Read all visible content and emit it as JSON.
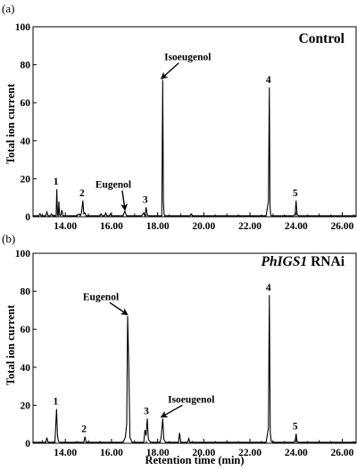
{
  "chart_data": [
    {
      "type": "line",
      "panel_tag": "(a)",
      "title": "Control",
      "ylabel": "Total ion current",
      "xlabel": "",
      "xlim": [
        12.6,
        26.6
      ],
      "ylim": [
        0,
        100
      ],
      "x_ticks": [
        14.0,
        16.0,
        18.0,
        20.0,
        22.0,
        24.0,
        26.0
      ],
      "x_tick_labels": [
        "14.00",
        "16.00",
        "18.00",
        "20.00",
        "22.00",
        "24.00",
        "26.00"
      ],
      "y_ticks": [
        0,
        20,
        40,
        60,
        80,
        100
      ],
      "y_tick_labels": [
        "0",
        "20",
        "40",
        "60",
        "80",
        "100"
      ],
      "series": [
        {
          "x": [
            12.6,
            12.85,
            12.9,
            12.95,
            13.15,
            13.2,
            13.25,
            13.35,
            13.4,
            13.45,
            13.6,
            13.63,
            13.66,
            13.69,
            13.72,
            13.75,
            13.8,
            13.85,
            13.9,
            14.5,
            14.6,
            14.65,
            14.7,
            14.76,
            14.8,
            14.85,
            14.9,
            15.5,
            15.55,
            15.6,
            15.7,
            15.75,
            15.8,
            15.9,
            15.95,
            16.0,
            16.5,
            16.58,
            16.62,
            16.66,
            16.75,
            17.3,
            17.4,
            17.45,
            17.5,
            17.55,
            17.6,
            18.1,
            18.18,
            18.22,
            18.25,
            18.28,
            18.31,
            18.35,
            18.4,
            19.4,
            19.45,
            19.5,
            22.7,
            22.8,
            22.84,
            22.87,
            22.9,
            22.93,
            23.0,
            23.9,
            23.96,
            24.0,
            24.04,
            24.1,
            26.6
          ],
          "y": [
            0.5,
            0.5,
            1.5,
            0.5,
            0.5,
            2.5,
            0.5,
            0.5,
            1.5,
            0.5,
            0.5,
            14.5,
            1.0,
            0.5,
            8.0,
            1.0,
            0.5,
            3.5,
            0.5,
            0.5,
            1.5,
            0.5,
            2.0,
            8.5,
            1.5,
            2.0,
            0.5,
            0.5,
            1.5,
            0.5,
            0.5,
            2.0,
            0.5,
            0.5,
            1.5,
            0.5,
            0.5,
            3.0,
            1.5,
            0.5,
            0.5,
            0.5,
            2.0,
            0.5,
            5.0,
            1.0,
            0.5,
            0.5,
            0.5,
            72.0,
            8.0,
            1.5,
            0.5,
            0.5,
            0.5,
            0.5,
            1.5,
            0.5,
            0.5,
            8.0,
            68.0,
            5.0,
            1.0,
            0.5,
            0.5,
            0.5,
            1.5,
            8.5,
            1.5,
            0.5,
            0.5
          ]
        }
      ],
      "annotations": [
        {
          "text": "1",
          "x": 13.63,
          "y": 14.5,
          "arrow": false
        },
        {
          "text": "2",
          "x": 14.76,
          "y": 8.5,
          "arrow": false
        },
        {
          "text": "Eugenol",
          "x": 16.62,
          "y": 3.0,
          "arrow": true
        },
        {
          "text": "3",
          "x": 17.5,
          "y": 5.0,
          "arrow": false
        },
        {
          "text": "Isoeugenol",
          "x": 18.22,
          "y": 72.0,
          "arrow": true
        },
        {
          "text": "4",
          "x": 22.84,
          "y": 68.0,
          "arrow": false
        },
        {
          "text": "5",
          "x": 24.0,
          "y": 8.5,
          "arrow": false
        }
      ]
    },
    {
      "type": "line",
      "panel_tag": "(b)",
      "title": "PhIGS1 RNAi",
      "title_italic_part": "PhIGS1",
      "title_plain_part": " RNAi",
      "ylabel": "Total ion current",
      "xlabel": "Retention time (min)",
      "xlim": [
        12.6,
        26.6
      ],
      "ylim": [
        0,
        100
      ],
      "x_ticks": [
        14.0,
        16.0,
        18.0,
        20.0,
        22.0,
        24.0,
        26.0
      ],
      "x_tick_labels": [
        "14.00",
        "16.00",
        "18.00",
        "20.00",
        "22.00",
        "24.00",
        "26.00"
      ],
      "y_ticks": [
        0,
        20,
        40,
        60,
        80,
        100
      ],
      "y_tick_labels": [
        "0",
        "20",
        "40",
        "60",
        "80",
        "100"
      ],
      "series": [
        {
          "x": [
            12.6,
            13.15,
            13.2,
            13.25,
            13.55,
            13.62,
            13.66,
            13.7,
            13.78,
            14.8,
            14.85,
            14.9,
            16.5,
            16.6,
            16.66,
            16.7,
            16.75,
            16.8,
            16.9,
            17.4,
            17.45,
            17.5,
            17.55,
            17.6,
            17.7,
            18.1,
            18.15,
            18.22,
            18.27,
            18.35,
            18.9,
            18.95,
            19.0,
            19.3,
            19.35,
            19.4,
            22.7,
            22.8,
            22.84,
            22.88,
            22.92,
            23.0,
            23.9,
            23.96,
            24.0,
            24.04,
            24.1,
            26.6
          ],
          "y": [
            0.5,
            0.5,
            3.0,
            0.5,
            0.5,
            18.0,
            4.0,
            1.0,
            0.5,
            0.5,
            3.5,
            0.5,
            0.5,
            3.0,
            10.0,
            67.0,
            40.0,
            3.0,
            0.5,
            0.5,
            7.0,
            4.0,
            13.0,
            2.0,
            0.5,
            0.5,
            3.0,
            13.0,
            2.0,
            0.5,
            0.5,
            5.5,
            0.5,
            0.5,
            2.5,
            0.5,
            0.5,
            8.0,
            78.0,
            6.0,
            1.0,
            0.5,
            0.5,
            1.5,
            5.0,
            1.0,
            0.5,
            0.5
          ]
        }
      ],
      "annotations": [
        {
          "text": "1",
          "x": 13.62,
          "y": 18.0,
          "arrow": false
        },
        {
          "text": "2",
          "x": 14.85,
          "y": 3.5,
          "arrow": false
        },
        {
          "text": "Eugenol",
          "x": 16.7,
          "y": 67.0,
          "arrow": true
        },
        {
          "text": "3",
          "x": 17.55,
          "y": 13.0,
          "arrow": false
        },
        {
          "text": "Isoeugenol",
          "x": 18.22,
          "y": 13.0,
          "arrow": true
        },
        {
          "text": "4",
          "x": 22.84,
          "y": 78.0,
          "arrow": false
        },
        {
          "text": "5",
          "x": 24.0,
          "y": 5.0,
          "arrow": false
        }
      ]
    }
  ]
}
